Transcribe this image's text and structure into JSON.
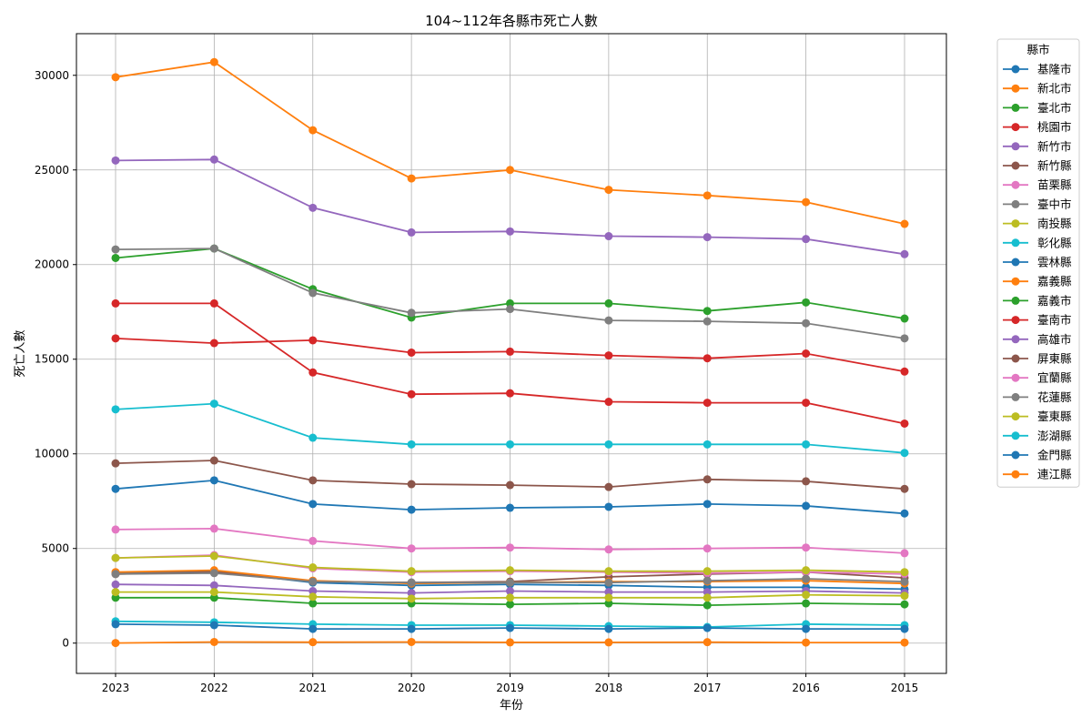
{
  "chart_data": {
    "type": "line",
    "title": "104~112年各縣市死亡人數",
    "xlabel": "年份",
    "ylabel": "死亡人數",
    "x": [
      "2023",
      "2022",
      "2021",
      "2020",
      "2019",
      "2018",
      "2017",
      "2016",
      "2015"
    ],
    "yticks": [
      0,
      5000,
      10000,
      15000,
      20000,
      25000,
      30000
    ],
    "ylim": [
      -1600,
      32200
    ],
    "grid": true,
    "legend": {
      "title": "縣市",
      "placement": "outside-right"
    },
    "series": [
      {
        "name": "基隆市",
        "color": "#1f77b4",
        "values": [
          3700,
          3800,
          3200,
          3050,
          3100,
          3050,
          2950,
          2950,
          2850
        ]
      },
      {
        "name": "新北市",
        "color": "#ff7f0e",
        "values": [
          29900,
          30700,
          27100,
          24550,
          25000,
          23950,
          23650,
          23300,
          22150
        ]
      },
      {
        "name": "臺北市",
        "color": "#2ca02c",
        "values": [
          20350,
          20850,
          18700,
          17200,
          17950,
          17950,
          17550,
          18000,
          17150
        ]
      },
      {
        "name": "桃園市",
        "color": "#d62728",
        "values": [
          16100,
          15850,
          16000,
          15350,
          15400,
          15200,
          15050,
          15300,
          14350
        ]
      },
      {
        "name": "新竹市",
        "color": "#9467bd",
        "values": [
          3100,
          3050,
          2750,
          2650,
          2750,
          2700,
          2700,
          2750,
          2650
        ]
      },
      {
        "name": "新竹縣",
        "color": "#8c564b",
        "values": [
          3650,
          3750,
          3250,
          3200,
          3250,
          3500,
          3650,
          3750,
          3450
        ]
      },
      {
        "name": "苗栗縣",
        "color": "#e377c2",
        "values": [
          4500,
          4650,
          3950,
          3750,
          3800,
          3750,
          3700,
          3750,
          3650
        ]
      },
      {
        "name": "臺中市",
        "color": "#7f7f7f",
        "values": [
          20800,
          20850,
          18500,
          17450,
          17650,
          17050,
          17000,
          16900,
          16100
        ]
      },
      {
        "name": "南投縣",
        "color": "#bcbd22",
        "values": [
          4500,
          4600,
          4000,
          3800,
          3850,
          3800,
          3800,
          3850,
          3750
        ]
      },
      {
        "name": "彰化縣",
        "color": "#17becf",
        "values": [
          12350,
          12650,
          10850,
          10500,
          10500,
          10500,
          10500,
          10500,
          10050
        ]
      },
      {
        "name": "雲林縣",
        "color": "#1f77b4",
        "values": [
          8150,
          8600,
          7350,
          7050,
          7150,
          7200,
          7350,
          7250,
          6850
        ]
      },
      {
        "name": "嘉義縣",
        "color": "#ff7f0e",
        "values": [
          3750,
          3850,
          3300,
          3150,
          3200,
          3250,
          3250,
          3300,
          3150
        ]
      },
      {
        "name": "嘉義市",
        "color": "#2ca02c",
        "values": [
          2400,
          2400,
          2100,
          2100,
          2050,
          2100,
          2000,
          2100,
          2050
        ]
      },
      {
        "name": "臺南市",
        "color": "#d62728",
        "values": [
          17950,
          17950,
          14300,
          13150,
          13200,
          12750,
          12700,
          12700,
          11600
        ]
      },
      {
        "name": "高雄市",
        "color": "#9467bd",
        "values": [
          25500,
          25550,
          23000,
          21700,
          21750,
          21500,
          21450,
          21350,
          20550
        ]
      },
      {
        "name": "屏東縣",
        "color": "#8c564b",
        "values": [
          9500,
          9650,
          8600,
          8400,
          8350,
          8250,
          8650,
          8550,
          8150
        ]
      },
      {
        "name": "宜蘭縣",
        "color": "#e377c2",
        "values": [
          6000,
          6050,
          5400,
          5000,
          5050,
          4950,
          5000,
          5050,
          4750
        ]
      },
      {
        "name": "花蓮縣",
        "color": "#7f7f7f",
        "values": [
          3650,
          3700,
          3250,
          3200,
          3200,
          3200,
          3300,
          3400,
          3250
        ]
      },
      {
        "name": "臺東縣",
        "color": "#bcbd22",
        "values": [
          2700,
          2700,
          2450,
          2350,
          2400,
          2400,
          2400,
          2550,
          2500
        ]
      },
      {
        "name": "澎湖縣",
        "color": "#17becf",
        "values": [
          1150,
          1100,
          1000,
          950,
          950,
          900,
          850,
          1000,
          950
        ]
      },
      {
        "name": "金門縣",
        "color": "#1f77b4",
        "values": [
          1000,
          950,
          750,
          750,
          800,
          750,
          800,
          750,
          750
        ]
      },
      {
        "name": "連江縣",
        "color": "#ff7f0e",
        "values": [
          5,
          60,
          50,
          60,
          40,
          40,
          50,
          30,
          30
        ]
      }
    ],
    "extra_series_note": ""
  }
}
